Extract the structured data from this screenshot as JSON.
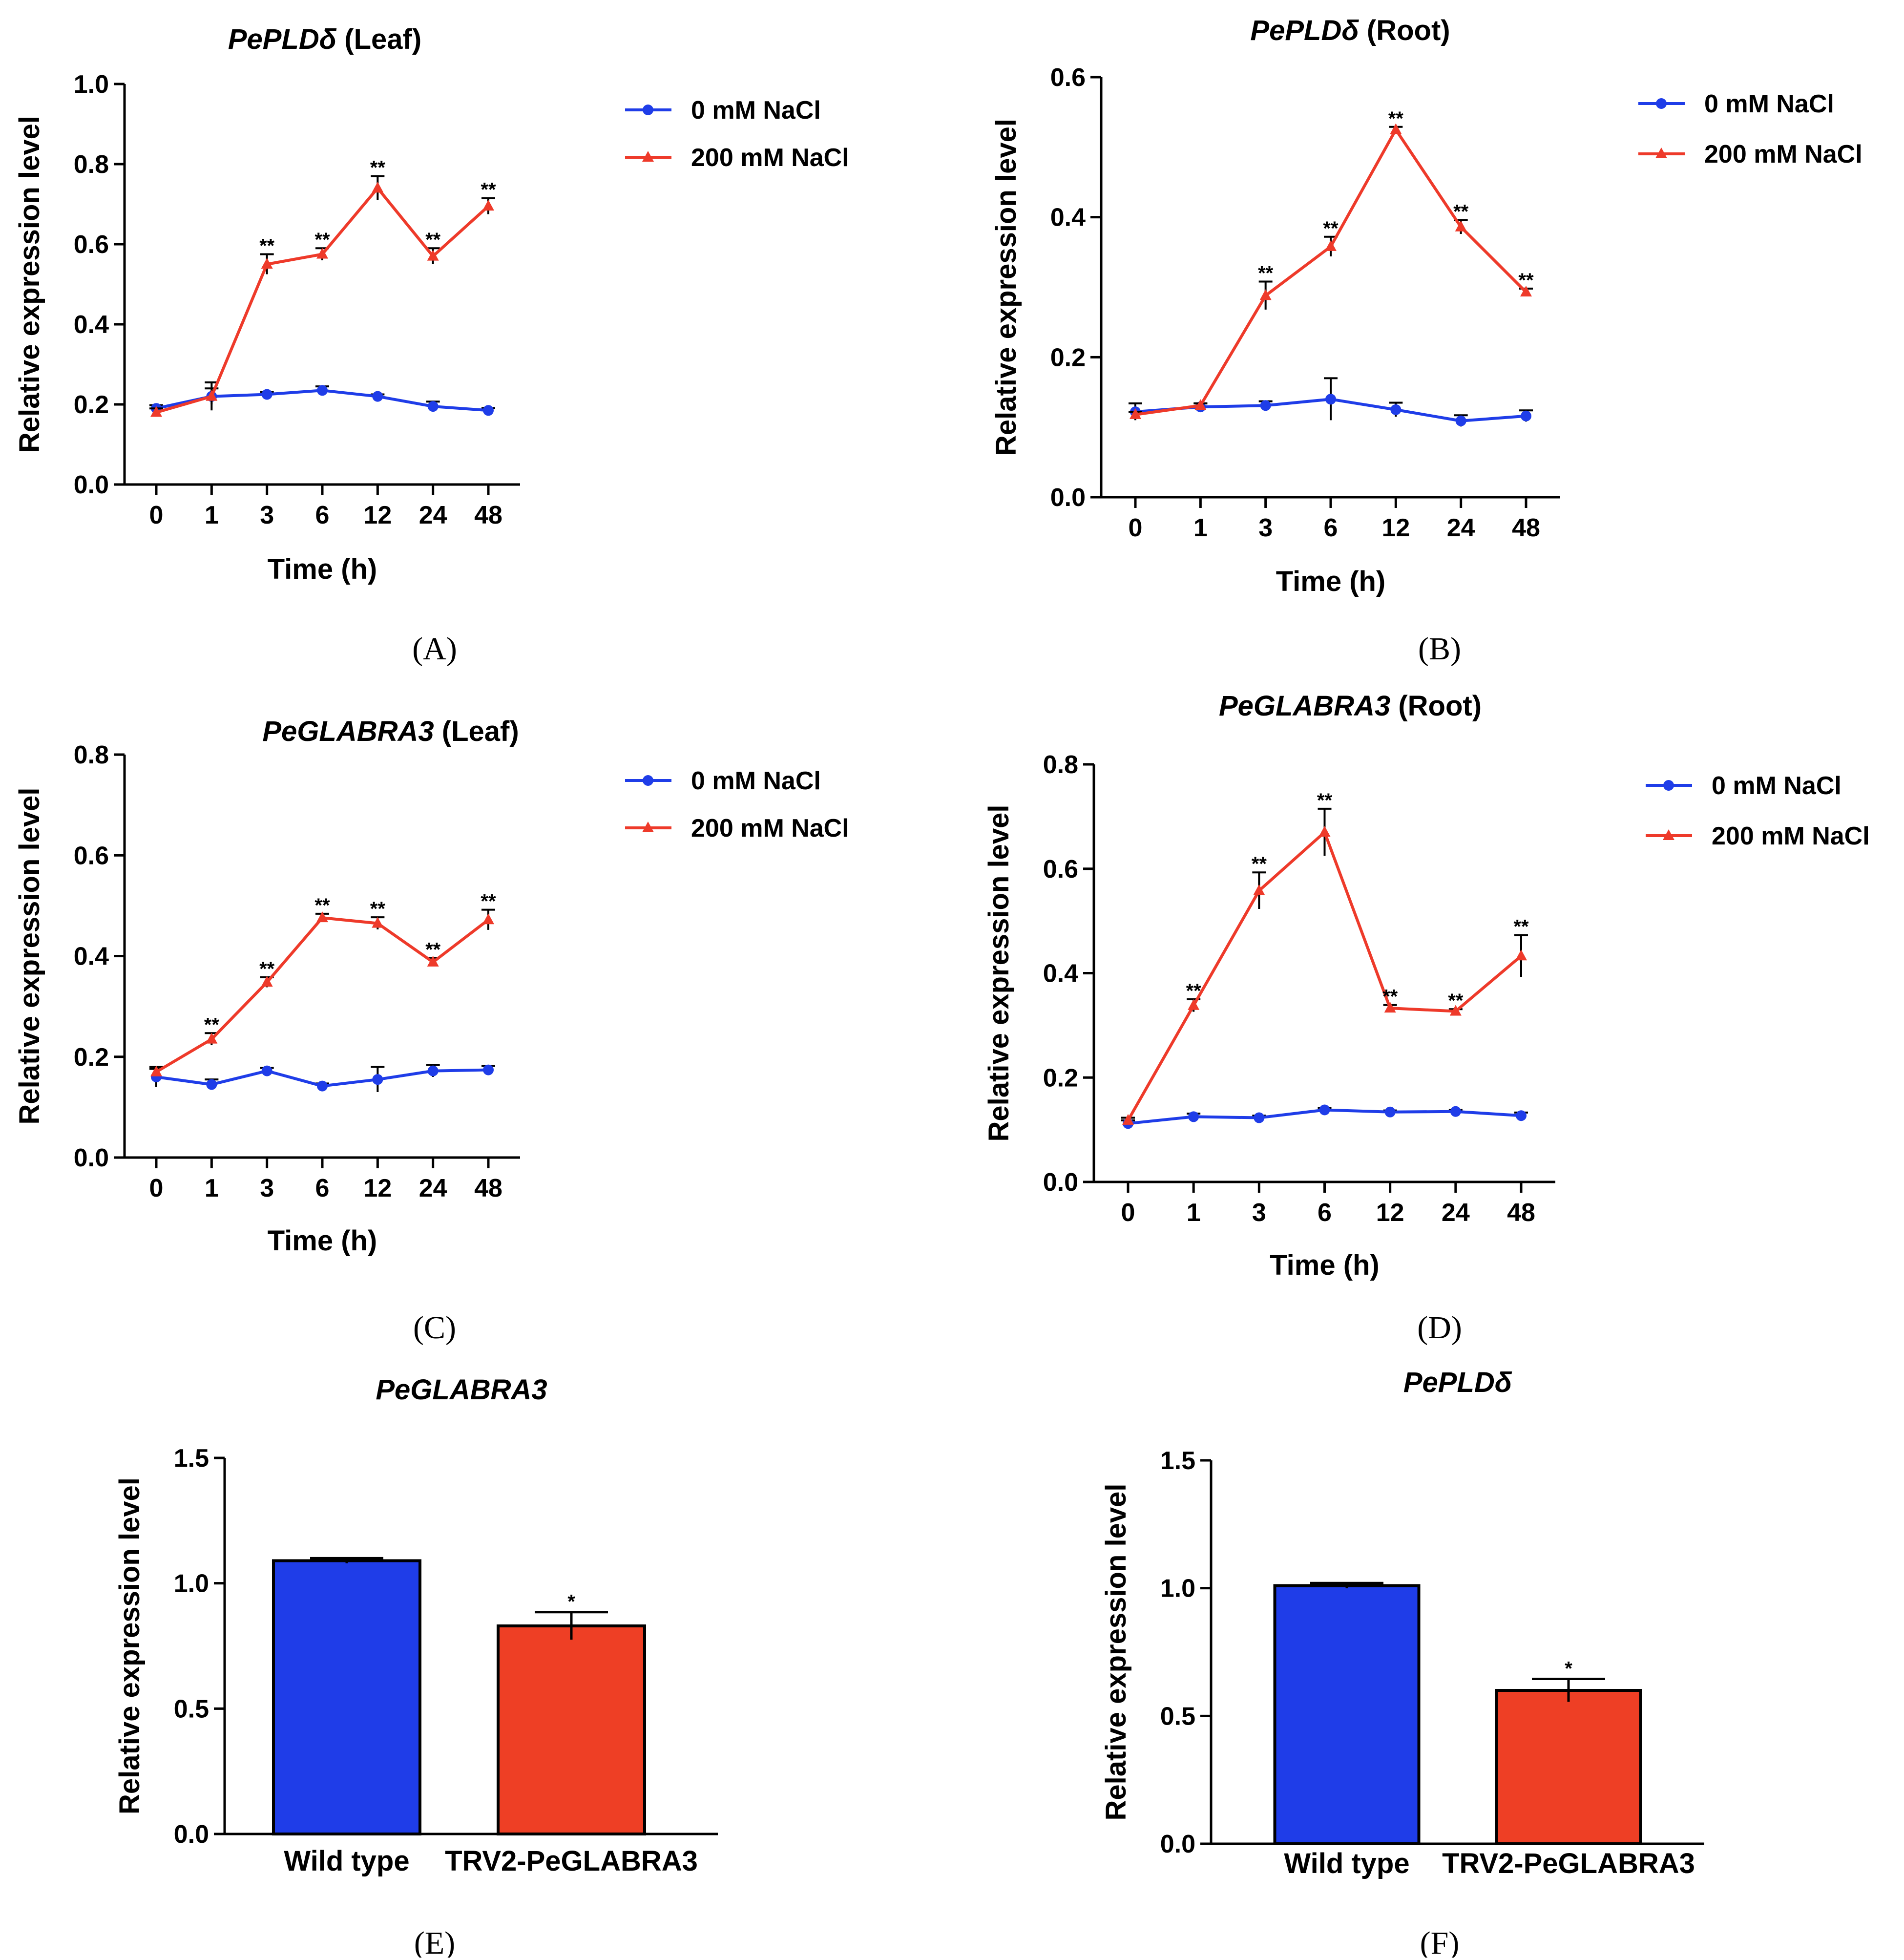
{
  "chart_data": [
    {
      "id": "A",
      "type": "line",
      "panel_label": "(A)",
      "title_gene": "PePLDδ",
      "title_suffix": " (Leaf)",
      "xlabel": "Time (h)",
      "ylabel": "Relative expression level",
      "categories": [
        "0",
        "1",
        "3",
        "6",
        "12",
        "24",
        "48"
      ],
      "ylim": [
        0,
        1.0
      ],
      "yticks": [
        "0.0",
        "0.2",
        "0.4",
        "0.6",
        "0.8",
        "1.0"
      ],
      "series": [
        {
          "name": "0 mM NaCl",
          "color": "#1f3de8",
          "marker": "circle",
          "values": [
            0.19,
            0.22,
            0.225,
            0.235,
            0.22,
            0.195,
            0.185
          ],
          "errors": [
            0.008,
            0.02,
            0.006,
            0.01,
            0.005,
            0.012,
            0.006
          ]
        },
        {
          "name": "200 mM NaCl",
          "color": "#ee3a2a",
          "marker": "triangle",
          "values": [
            0.18,
            0.22,
            0.55,
            0.575,
            0.74,
            0.57,
            0.695
          ],
          "errors": [
            0.01,
            0.035,
            0.025,
            0.015,
            0.03,
            0.02,
            0.02
          ],
          "significance": [
            "",
            "",
            "**",
            "**",
            "**",
            "**",
            "**"
          ]
        }
      ]
    },
    {
      "id": "B",
      "type": "line",
      "panel_label": "(B)",
      "title_gene": "PePLDδ",
      "title_suffix": " (Root)",
      "xlabel": "Time (h)",
      "ylabel": "Relative expression level",
      "categories": [
        "0",
        "1",
        "3",
        "6",
        "12",
        "24",
        "48"
      ],
      "ylim": [
        0,
        0.6
      ],
      "yticks": [
        "0.0",
        "0.2",
        "0.4",
        "0.6"
      ],
      "series": [
        {
          "name": "0 mM NaCl",
          "color": "#1f3de8",
          "marker": "circle",
          "values": [
            0.122,
            0.129,
            0.131,
            0.14,
            0.125,
            0.109,
            0.116
          ],
          "errors": [
            0.012,
            0.005,
            0.006,
            0.03,
            0.01,
            0.008,
            0.008
          ]
        },
        {
          "name": "200 mM NaCl",
          "color": "#ee3a2a",
          "marker": "triangle",
          "values": [
            0.118,
            0.131,
            0.288,
            0.358,
            0.525,
            0.386,
            0.293
          ],
          "errors": [
            0.004,
            0.003,
            0.02,
            0.014,
            0.004,
            0.01,
            0.005
          ],
          "significance": [
            "",
            "",
            "**",
            "**",
            "**",
            "**",
            "**"
          ]
        }
      ]
    },
    {
      "id": "C",
      "type": "line",
      "panel_label": "(C)",
      "title_gene": "PeGLABRA3",
      "title_suffix": " (Leaf)",
      "xlabel": "Time (h)",
      "ylabel": "Relative expression level",
      "categories": [
        "0",
        "1",
        "3",
        "6",
        "12",
        "24",
        "48"
      ],
      "ylim": [
        0,
        0.8
      ],
      "yticks": [
        "0.0",
        "0.2",
        "0.4",
        "0.6",
        "0.8"
      ],
      "series": [
        {
          "name": "0 mM NaCl",
          "color": "#1f3de8",
          "marker": "circle",
          "values": [
            0.16,
            0.145,
            0.172,
            0.142,
            0.155,
            0.172,
            0.174
          ],
          "errors": [
            0.02,
            0.01,
            0.006,
            0.005,
            0.025,
            0.012,
            0.008
          ]
        },
        {
          "name": "200 mM NaCl",
          "color": "#ee3a2a",
          "marker": "triangle",
          "values": [
            0.17,
            0.235,
            0.348,
            0.476,
            0.465,
            0.388,
            0.472
          ],
          "errors": [
            0.006,
            0.012,
            0.01,
            0.008,
            0.012,
            0.008,
            0.02
          ],
          "significance": [
            "",
            "**",
            "**",
            "**",
            "**",
            "**",
            "**"
          ]
        }
      ]
    },
    {
      "id": "D",
      "type": "line",
      "panel_label": "(D)",
      "title_gene": "PeGLABRA3",
      "title_suffix": " (Root)",
      "xlabel": "Time (h)",
      "ylabel": "Relative expression level",
      "categories": [
        "0",
        "1",
        "3",
        "6",
        "12",
        "24",
        "48"
      ],
      "ylim": [
        0,
        0.8
      ],
      "yticks": [
        "0.0",
        "0.2",
        "0.4",
        "0.6",
        "0.8"
      ],
      "series": [
        {
          "name": "0 mM NaCl",
          "color": "#1f3de8",
          "marker": "circle",
          "values": [
            0.112,
            0.125,
            0.123,
            0.138,
            0.134,
            0.135,
            0.127
          ],
          "errors": [
            0.006,
            0.006,
            0.004,
            0.004,
            0.003,
            0.003,
            0.006
          ]
        },
        {
          "name": "200 mM NaCl",
          "color": "#ee3a2a",
          "marker": "triangle",
          "values": [
            0.118,
            0.338,
            0.558,
            0.67,
            0.333,
            0.327,
            0.433
          ],
          "errors": [
            0.005,
            0.012,
            0.035,
            0.045,
            0.006,
            0.004,
            0.04
          ],
          "significance": [
            "",
            "**",
            "**",
            "**",
            "**",
            "**",
            "**"
          ]
        }
      ]
    },
    {
      "id": "E",
      "type": "bar",
      "panel_label": "(E)",
      "title_gene": "PeGLABRA3",
      "title_suffix": "",
      "xlabel": "",
      "ylabel": "Relative expression level",
      "categories": [
        "Wild type",
        "TRV2-PeGLABRA3"
      ],
      "values": [
        1.09,
        0.83
      ],
      "errors": [
        0.01,
        0.055
      ],
      "colors": [
        "#1f3de8",
        "#ee3f25"
      ],
      "significance": [
        "",
        "*"
      ],
      "ylim": [
        0,
        1.5
      ],
      "yticks": [
        "0.0",
        "0.5",
        "1.0",
        "1.5"
      ]
    },
    {
      "id": "F",
      "type": "bar",
      "panel_label": "(F)",
      "title_gene": "PePLDδ",
      "title_suffix": "",
      "xlabel": "",
      "ylabel": "Relative expression level",
      "categories": [
        "Wild type",
        "TRV2-PeGLABRA3"
      ],
      "values": [
        1.01,
        0.6
      ],
      "errors": [
        0.01,
        0.045
      ],
      "colors": [
        "#1f3de8",
        "#ee3f25"
      ],
      "significance": [
        "",
        "*"
      ],
      "ylim": [
        0,
        1.5
      ],
      "yticks": [
        "0.0",
        "0.5",
        "1.0",
        "1.5"
      ]
    }
  ]
}
